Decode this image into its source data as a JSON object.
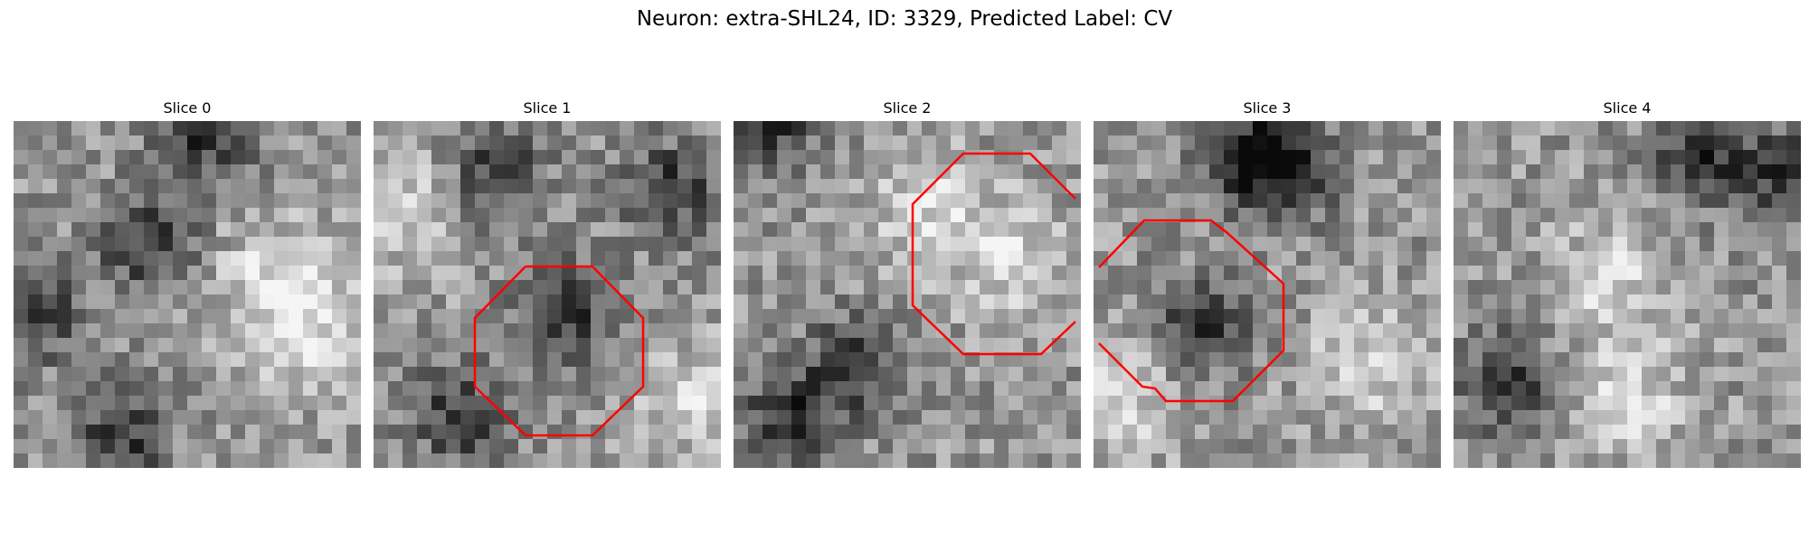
{
  "figure": {
    "title": "Neuron: extra-SHL24, ID: 3329, Predicted Label: CV"
  },
  "panels": [
    {
      "title": "Slice 0",
      "seed": 11,
      "dark_blobs": [
        [
          0.38,
          0.35
        ],
        [
          0.3,
          0.92
        ],
        [
          0.05,
          0.55
        ],
        [
          0.55,
          0.05
        ]
      ],
      "light_blobs": [
        [
          0.75,
          0.45
        ],
        [
          0.85,
          0.6
        ]
      ],
      "contour": null
    },
    {
      "title": "Slice 1",
      "seed": 23,
      "dark_blobs": [
        [
          0.35,
          0.15
        ],
        [
          0.25,
          0.85
        ],
        [
          0.55,
          0.55
        ],
        [
          0.85,
          0.2
        ]
      ],
      "light_blobs": [
        [
          0.1,
          0.25
        ],
        [
          0.95,
          0.8
        ]
      ],
      "contour": {
        "type": "octagon"
      }
    },
    {
      "title": "Slice 2",
      "seed": 37,
      "dark_blobs": [
        [
          0.1,
          0.02
        ],
        [
          0.35,
          0.7
        ],
        [
          0.15,
          0.85
        ]
      ],
      "light_blobs": [
        [
          0.55,
          0.25
        ],
        [
          0.8,
          0.4
        ]
      ],
      "contour": {
        "type": "octagon-clipped-right"
      }
    },
    {
      "title": "Slice 3",
      "seed": 53,
      "dark_blobs": [
        [
          0.55,
          0.15
        ],
        [
          0.45,
          0.1
        ],
        [
          0.3,
          0.6
        ]
      ],
      "light_blobs": [
        [
          0.8,
          0.7
        ],
        [
          0.1,
          0.8
        ]
      ],
      "contour": {
        "type": "octagon-clipped-left"
      }
    },
    {
      "title": "Slice 4",
      "seed": 71,
      "dark_blobs": [
        [
          0.7,
          0.1
        ],
        [
          0.15,
          0.75
        ],
        [
          0.95,
          0.15
        ]
      ],
      "light_blobs": [
        [
          0.45,
          0.45
        ],
        [
          0.5,
          0.8
        ]
      ],
      "contour": null
    }
  ],
  "colors": {
    "contour": "#ff0000",
    "background": "#ffffff"
  }
}
